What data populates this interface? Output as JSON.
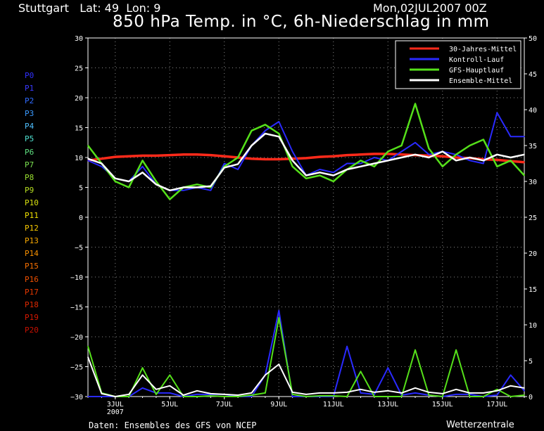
{
  "header": {
    "location": "Stuttgart   Lat: 49  Lon: 9",
    "date": "Mon,02JUL2007 00Z",
    "title": "850 hPa Temp. in °C, 6h-Niederschlag in mm"
  },
  "footer": {
    "left": "Daten: Ensembles des GFS von NCEP",
    "right": "Wetterzentrale"
  },
  "members": [
    {
      "label": "P0",
      "color": "#3030ff"
    },
    {
      "label": "P1",
      "color": "#3a3aff"
    },
    {
      "label": "P2",
      "color": "#2f6bff"
    },
    {
      "label": "P3",
      "color": "#3a9aff"
    },
    {
      "label": "P4",
      "color": "#4fc0ff"
    },
    {
      "label": "P5",
      "color": "#4fe0d0"
    },
    {
      "label": "P6",
      "color": "#5fe080"
    },
    {
      "label": "P7",
      "color": "#7ae050"
    },
    {
      "label": "P8",
      "color": "#9ae030"
    },
    {
      "label": "P9",
      "color": "#b8e020"
    },
    {
      "label": "P10",
      "color": "#d8e010"
    },
    {
      "label": "P11",
      "color": "#f0e000"
    },
    {
      "label": "P12",
      "color": "#f8c800"
    },
    {
      "label": "P13",
      "color": "#f8a800"
    },
    {
      "label": "P14",
      "color": "#f89000"
    },
    {
      "label": "P15",
      "color": "#f87000"
    },
    {
      "label": "P16",
      "color": "#f05000"
    },
    {
      "label": "P17",
      "color": "#e83800"
    },
    {
      "label": "P18",
      "color": "#e02800"
    },
    {
      "label": "P19",
      "color": "#d81800"
    },
    {
      "label": "P20",
      "color": "#c81000"
    }
  ],
  "chart_data": {
    "type": "line",
    "x": [
      "02JUL00",
      "02JUL12",
      "03JUL00",
      "03JUL12",
      "04JUL00",
      "04JUL12",
      "05JUL00",
      "05JUL12",
      "06JUL00",
      "06JUL12",
      "07JUL00",
      "07JUL12",
      "08JUL00",
      "08JUL12",
      "09JUL00",
      "09JUL12",
      "10JUL00",
      "10JUL12",
      "11JUL00",
      "11JUL12",
      "12JUL00",
      "12JUL12",
      "13JUL00",
      "13JUL12",
      "14JUL00",
      "14JUL12",
      "15JUL00",
      "15JUL12",
      "16JUL00",
      "16JUL12",
      "17JUL00",
      "17JUL12",
      "18JUL00"
    ],
    "x_ticks": [
      {
        "x": "03JUL00",
        "label": "3JUL",
        "sub": "2007"
      },
      {
        "x": "05JUL00",
        "label": "5JUL"
      },
      {
        "x": "07JUL00",
        "label": "7JUL"
      },
      {
        "x": "09JUL00",
        "label": "9JUL"
      },
      {
        "x": "11JUL00",
        "label": "11JUL"
      },
      {
        "x": "13JUL00",
        "label": "13JUL"
      },
      {
        "x": "15JUL00",
        "label": "15JUL"
      },
      {
        "x": "17JUL00",
        "label": "17JUL"
      }
    ],
    "left_axis": {
      "ylim": [
        -30,
        30
      ],
      "ticks": [
        30,
        25,
        20,
        15,
        10,
        5,
        0,
        -5,
        -10,
        -15,
        -20,
        -25,
        -30
      ]
    },
    "right_axis": {
      "ylim": [
        0,
        50
      ],
      "ticks": [
        50,
        45,
        40,
        35,
        30,
        25,
        20,
        15,
        10,
        5,
        0
      ]
    },
    "grid": true,
    "legend": {
      "position": "top-right",
      "entries": [
        {
          "name": "30-Jahres-Mittel",
          "color": "#ff2a1a"
        },
        {
          "name": "Kontroll-Lauf",
          "color": "#2a2aff"
        },
        {
          "name": "GFS-Hauptlauf",
          "color": "#55e01a"
        },
        {
          "name": "Ensemble-Mittel",
          "color": "#ffffff"
        }
      ]
    },
    "series": [
      {
        "name": "30-Jahres-Mittel",
        "axis": "left",
        "values": [
          9.5,
          9.8,
          10.1,
          10.2,
          10.3,
          10.3,
          10.4,
          10.5,
          10.5,
          10.4,
          10.2,
          10.0,
          9.8,
          9.7,
          9.7,
          9.8,
          9.9,
          10.1,
          10.2,
          10.4,
          10.5,
          10.6,
          10.6,
          10.5,
          10.4,
          10.3,
          10.2,
          10.0,
          9.9,
          9.7,
          9.6,
          9.4,
          9.2
        ]
      },
      {
        "name": "Kontroll-Lauf",
        "axis": "left",
        "values": [
          9.5,
          8.5,
          6.5,
          6.0,
          8.5,
          5.5,
          4.5,
          4.5,
          5.0,
          4.5,
          9.0,
          8.0,
          12.0,
          14.5,
          16.0,
          11.0,
          7.0,
          8.0,
          7.5,
          9.0,
          9.0,
          10.0,
          9.5,
          11.0,
          12.5,
          10.5,
          11.0,
          10.5,
          9.5,
          9.0,
          17.5,
          13.5,
          13.5
        ]
      },
      {
        "name": "GFS-Hauptlauf",
        "axis": "left",
        "values": [
          12.0,
          9.0,
          6.0,
          5.0,
          9.5,
          6.0,
          3.0,
          5.0,
          5.5,
          5.0,
          8.5,
          10.0,
          14.5,
          15.5,
          14.0,
          8.5,
          6.5,
          7.0,
          6.0,
          8.0,
          9.5,
          8.5,
          11.0,
          12.0,
          19.0,
          11.5,
          8.5,
          10.5,
          12.0,
          13.0,
          8.5,
          9.5,
          7.0
        ]
      },
      {
        "name": "Ensemble-Mittel",
        "axis": "left",
        "values": [
          9.8,
          9.0,
          6.5,
          6.0,
          7.5,
          5.5,
          4.5,
          5.0,
          5.0,
          5.2,
          8.3,
          8.9,
          12.0,
          14.0,
          13.5,
          9.5,
          7.0,
          7.5,
          7.0,
          8.0,
          8.5,
          9.0,
          9.5,
          10.0,
          10.5,
          10.0,
          11.0,
          9.5,
          10.0,
          9.5,
          10.5,
          10.0,
          10.5
        ]
      },
      {
        "name": "Kontroll-Lauf (Niederschlag)",
        "axis": "right",
        "values": [
          0,
          0,
          0,
          0,
          1.2,
          0.5,
          0.5,
          0,
          0.3,
          0.3,
          0.3,
          0,
          0,
          3.0,
          12.0,
          0,
          0,
          0,
          0,
          7.0,
          0.5,
          0.3,
          4.0,
          0.2,
          0.5,
          0.2,
          0,
          0.3,
          0.3,
          0,
          0.2,
          3.0,
          0.8
        ]
      },
      {
        "name": "GFS-Hauptlauf (Niederschlag)",
        "axis": "right",
        "values": [
          7.0,
          0.5,
          0,
          0,
          4.0,
          0.3,
          3.0,
          0,
          0,
          0.1,
          0,
          0,
          0.2,
          0.5,
          11.0,
          0.3,
          0,
          0.1,
          0.1,
          0,
          3.5,
          0,
          0,
          0,
          6.5,
          0.2,
          0,
          6.5,
          0,
          0,
          1.0,
          0,
          0.2
        ]
      },
      {
        "name": "Ensemble-Mittel (Niederschlag)",
        "axis": "right",
        "values": [
          5.5,
          0.4,
          0,
          0.3,
          3.0,
          1.0,
          1.5,
          0.2,
          0.8,
          0.4,
          0.3,
          0.2,
          0.5,
          3.0,
          4.5,
          0.6,
          0.3,
          0.5,
          0.5,
          0.6,
          1.0,
          0.6,
          0.8,
          0.5,
          1.2,
          0.6,
          0.4,
          1.0,
          0.5,
          0.5,
          0.8,
          1.5,
          1.2
        ]
      }
    ]
  }
}
